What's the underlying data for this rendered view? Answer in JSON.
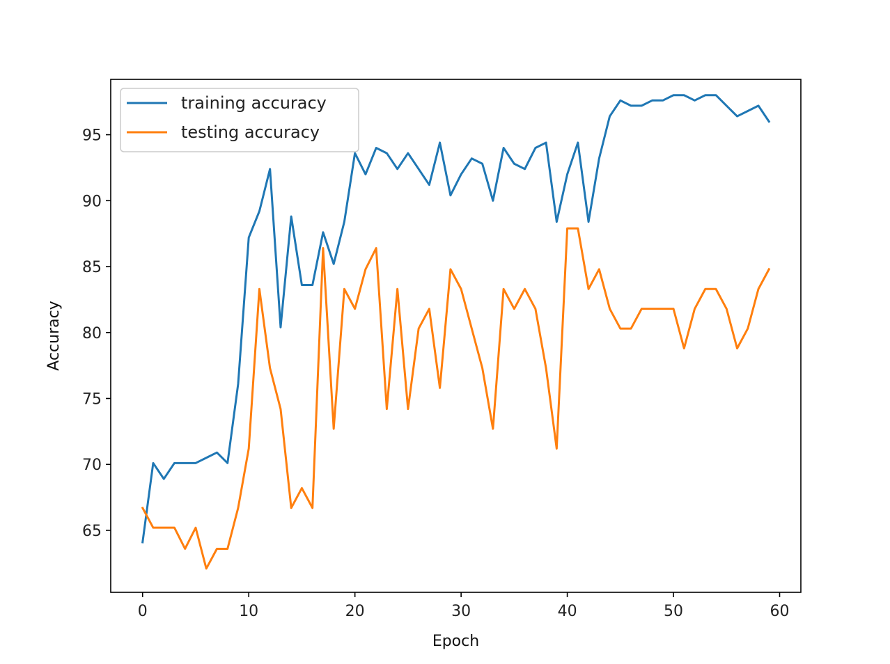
{
  "chart_data": {
    "type": "line",
    "title": "",
    "xlabel": "Epoch",
    "ylabel": "Accuracy",
    "xlim": [
      -3,
      62
    ],
    "ylim": [
      60.3,
      99.2
    ],
    "xticks": [
      0,
      10,
      20,
      30,
      40,
      50,
      60
    ],
    "yticks": [
      65,
      70,
      75,
      80,
      85,
      90,
      95
    ],
    "grid": false,
    "legend_position": "top-left",
    "x": [
      0,
      1,
      2,
      3,
      4,
      5,
      6,
      7,
      8,
      9,
      10,
      11,
      12,
      13,
      14,
      15,
      16,
      17,
      18,
      19,
      20,
      21,
      22,
      23,
      24,
      25,
      26,
      27,
      28,
      29,
      30,
      31,
      32,
      33,
      34,
      35,
      36,
      37,
      38,
      39,
      40,
      41,
      42,
      43,
      44,
      45,
      46,
      47,
      48,
      49,
      50,
      51,
      52,
      53,
      54,
      55,
      56,
      57,
      58,
      59
    ],
    "series": [
      {
        "name": "training accuracy",
        "color": "#1f77b4",
        "values": [
          64.1,
          70.1,
          68.9,
          70.1,
          70.1,
          70.1,
          70.5,
          70.9,
          70.1,
          76.1,
          87.2,
          89.2,
          92.4,
          80.4,
          88.8,
          83.6,
          83.6,
          87.6,
          85.2,
          88.4,
          93.6,
          92.0,
          94.0,
          93.6,
          92.4,
          93.6,
          92.4,
          91.2,
          94.4,
          90.4,
          92.0,
          93.2,
          92.8,
          90.0,
          94.0,
          92.8,
          92.4,
          94.0,
          94.4,
          88.4,
          92.0,
          94.4,
          88.4,
          93.2,
          96.4,
          97.6,
          97.2,
          97.2,
          97.6,
          97.6,
          98.0,
          98.0,
          97.6,
          98.0,
          98.0,
          97.2,
          96.4,
          96.8,
          97.2,
          96.0
        ]
      },
      {
        "name": "testing accuracy",
        "color": "#ff7f0e",
        "values": [
          66.7,
          65.2,
          65.2,
          65.2,
          63.6,
          65.2,
          62.1,
          63.6,
          63.6,
          66.7,
          71.2,
          83.3,
          77.3,
          74.2,
          66.7,
          68.2,
          66.7,
          86.4,
          72.7,
          83.3,
          81.8,
          84.8,
          86.4,
          74.2,
          83.3,
          74.2,
          80.3,
          81.8,
          75.8,
          84.8,
          83.3,
          80.3,
          77.3,
          72.7,
          83.3,
          81.8,
          83.3,
          81.8,
          77.3,
          71.2,
          87.9,
          87.9,
          83.3,
          84.8,
          81.8,
          80.3,
          80.3,
          81.8,
          81.8,
          81.8,
          81.8,
          78.8,
          81.8,
          83.3,
          83.3,
          81.8,
          78.8,
          80.3,
          83.3,
          84.8
        ]
      }
    ]
  }
}
